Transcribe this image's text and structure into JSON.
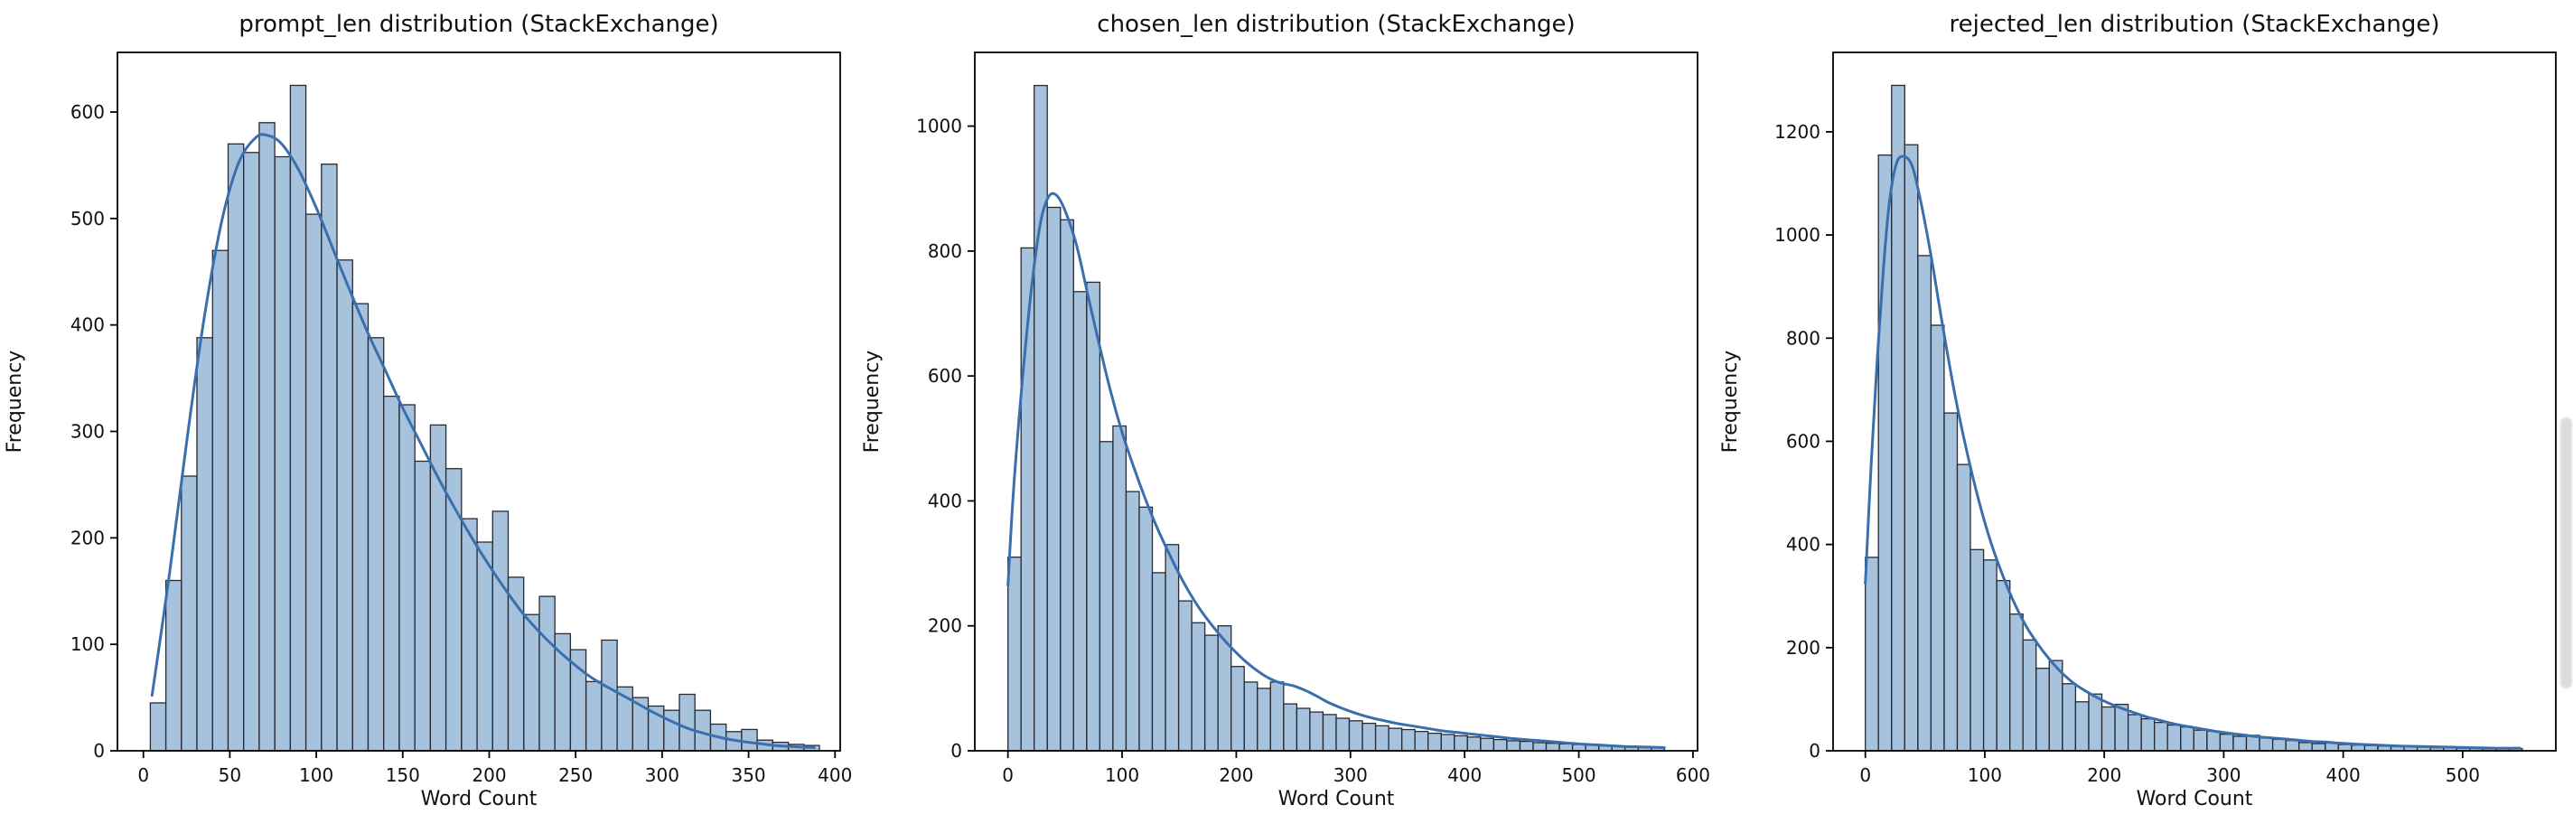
{
  "page": {
    "background": "#ffffff"
  },
  "scrollbar": {
    "present": true
  },
  "style": {
    "bar_fill": "#a7c2dd",
    "bar_edge": "#262a33",
    "kde_line": "#3a6fad",
    "spine_color": "#000000",
    "text_color": "#111111"
  },
  "chart_data": [
    {
      "type": "bar",
      "subtype": "histogram_with_kde",
      "title": "prompt_len distribution (StackExchange)",
      "xlabel": "Word Count",
      "ylabel": "Frequency",
      "bin_start": 4,
      "bin_width": 9.0,
      "values": [
        45,
        160,
        258,
        388,
        470,
        570,
        562,
        590,
        558,
        625,
        504,
        551,
        461,
        420,
        388,
        333,
        325,
        272,
        306,
        265,
        218,
        196,
        225,
        163,
        128,
        145,
        110,
        95,
        65,
        104,
        60,
        50,
        42,
        38,
        53,
        38,
        25,
        18,
        20,
        10,
        8,
        6,
        5
      ],
      "kde": {
        "x": [
          5,
          15,
          25,
          35,
          45,
          55,
          65,
          72,
          80,
          90,
          100,
          110,
          120,
          130,
          140,
          150,
          160,
          170,
          180,
          190,
          200,
          210,
          220,
          230,
          240,
          250,
          258,
          266,
          275,
          285,
          295,
          305,
          315,
          325,
          335,
          345,
          355,
          365,
          375,
          388
        ],
        "y": [
          52,
          165,
          290,
          405,
          495,
          552,
          576,
          578,
          570,
          545,
          510,
          470,
          430,
          392,
          357,
          322,
          290,
          258,
          228,
          200,
          174,
          150,
          128,
          110,
          94,
          80,
          70,
          62,
          54,
          45,
          36,
          28,
          21,
          16,
          12,
          9,
          7,
          5,
          4,
          3
        ]
      },
      "xlim": [
        -15,
        403
      ],
      "ylim": [
        0,
        656
      ],
      "xticks": [
        0,
        50,
        100,
        150,
        200,
        250,
        300,
        350,
        400
      ],
      "yticks": [
        0,
        100,
        200,
        300,
        400,
        500,
        600
      ],
      "grid": false,
      "legend": null
    },
    {
      "type": "bar",
      "subtype": "histogram_with_kde",
      "title": "chosen_len distribution (StackExchange)",
      "xlabel": "Word Count",
      "ylabel": "Frequency",
      "bin_start": 0,
      "bin_width": 11.5,
      "values": [
        310,
        805,
        1065,
        870,
        850,
        735,
        750,
        495,
        520,
        415,
        390,
        285,
        330,
        240,
        205,
        185,
        200,
        135,
        110,
        100,
        110,
        75,
        68,
        62,
        58,
        52,
        48,
        44,
        40,
        36,
        34,
        31,
        28,
        26,
        24,
        22,
        20,
        18,
        16,
        15,
        13,
        12,
        11,
        10,
        9,
        8,
        7,
        6,
        5,
        5
      ],
      "kde": {
        "x": [
          0,
          5,
          12,
          20,
          28,
          35,
          42,
          50,
          60,
          70,
          80,
          90,
          100,
          110,
          120,
          130,
          140,
          150,
          160,
          170,
          180,
          190,
          200,
          210,
          220,
          230,
          240,
          250,
          260,
          270,
          280,
          290,
          300,
          310,
          320,
          330,
          340,
          350,
          360,
          370,
          380,
          390,
          400,
          420,
          440,
          460,
          480,
          500,
          520,
          540,
          560,
          575
        ],
        "y": [
          265,
          420,
          580,
          730,
          840,
          885,
          890,
          865,
          810,
          730,
          650,
          575,
          510,
          455,
          405,
          360,
          320,
          283,
          250,
          222,
          198,
          176,
          157,
          140,
          126,
          115,
          108,
          104,
          97,
          88,
          78,
          70,
          63,
          57,
          52,
          48,
          44,
          41,
          38,
          35,
          32,
          30,
          28,
          24,
          20,
          17,
          14,
          11,
          9,
          7,
          6,
          5
        ]
      },
      "xlim": [
        -29,
        604
      ],
      "ylim": [
        0,
        1118
      ],
      "xticks": [
        0,
        100,
        200,
        300,
        400,
        500,
        600
      ],
      "yticks": [
        0,
        200,
        400,
        600,
        800,
        1000
      ],
      "grid": false,
      "legend": null
    },
    {
      "type": "bar",
      "subtype": "histogram_with_kde",
      "title": "rejected_len distribution (StackExchange)",
      "xlabel": "Word Count",
      "ylabel": "Frequency",
      "bin_start": 0,
      "bin_width": 11.0,
      "values": [
        375,
        1155,
        1290,
        1175,
        960,
        825,
        655,
        555,
        390,
        370,
        330,
        265,
        215,
        160,
        175,
        130,
        95,
        110,
        85,
        90,
        70,
        62,
        55,
        50,
        46,
        40,
        38,
        32,
        28,
        30,
        25,
        22,
        20,
        16,
        14,
        15,
        12,
        11,
        10,
        9,
        8,
        8,
        7,
        6,
        6,
        5,
        5,
        4,
        4,
        4
      ],
      "kde": {
        "x": [
          0,
          5,
          10,
          15,
          20,
          25,
          30,
          38,
          45,
          55,
          65,
          75,
          85,
          95,
          105,
          115,
          125,
          135,
          145,
          155,
          165,
          175,
          185,
          195,
          205,
          215,
          225,
          235,
          245,
          255,
          265,
          275,
          285,
          295,
          305,
          315,
          325,
          335,
          345,
          355,
          365,
          375,
          385,
          395,
          410,
          430,
          450,
          470,
          490,
          510,
          530,
          548
        ],
        "y": [
          325,
          560,
          760,
          930,
          1060,
          1130,
          1152,
          1140,
          1080,
          960,
          820,
          690,
          580,
          485,
          405,
          340,
          285,
          240,
          205,
          175,
          150,
          130,
          115,
          102,
          91,
          82,
          74,
          66,
          60,
          54,
          49,
          45,
          41,
          37,
          34,
          31,
          28,
          26,
          24,
          22,
          20,
          18,
          17,
          15,
          13,
          11,
          9,
          8,
          7,
          6,
          5,
          5
        ]
      },
      "xlim": [
        -27,
        578
      ],
      "ylim": [
        0,
        1354
      ],
      "xticks": [
        0,
        100,
        200,
        300,
        400,
        500
      ],
      "yticks": [
        0,
        200,
        400,
        600,
        800,
        1000,
        1200
      ],
      "grid": false,
      "legend": null
    }
  ]
}
